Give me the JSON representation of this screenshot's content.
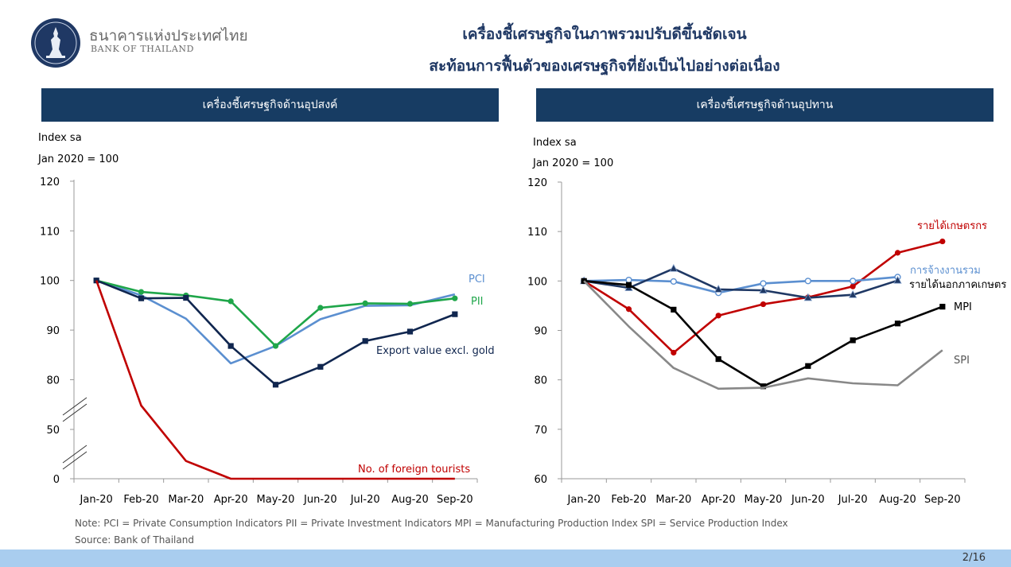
{
  "header": {
    "org_thai": "ธนาคารแห่งประเทศไทย",
    "org_en": "BANK OF THAILAND",
    "title_line1": "เครื่องชี้เศรษฐกิจในภาพรวมปรับดีขึ้นชัดเจน",
    "title_line2": "สะท้อนการฟื้นตัวของเศรษฐกิจที่ยังเป็นไปอย่างต่อเนื่อง"
  },
  "left_panel": {
    "heading": "เครื่องชี้เศรษฐกิจด้านอุปสงค์",
    "unit1": "Index sa",
    "unit2": "Jan 2020 = 100"
  },
  "right_panel": {
    "heading": "เครื่องชี้เศรษฐกิจด้านอุปทาน",
    "unit1": "Index sa",
    "unit2": "Jan 2020 = 100"
  },
  "chart_data": [
    {
      "type": "line",
      "categories": [
        "Jan-20",
        "Feb-20",
        "Mar-20",
        "Apr-20",
        "May-20",
        "Jun-20",
        "Jul-20",
        "Aug-20",
        "Sep-20"
      ],
      "yticks": [
        0,
        50,
        80,
        90,
        100,
        110,
        120
      ],
      "axis_break": true,
      "series": [
        {
          "name": "PCI",
          "color": "#5b8fd0",
          "marker": "none",
          "values": [
            100,
            97,
            92.3,
            83.3,
            86.8,
            92.2,
            94.9,
            95,
            97.2
          ]
        },
        {
          "name": "PII",
          "color": "#1fa64a",
          "marker": "circle",
          "values": [
            100,
            97.7,
            97,
            95.8,
            86.8,
            94.5,
            95.4,
            95.3,
            96.4
          ]
        },
        {
          "name": "Export value excl. gold",
          "color": "#10264f",
          "marker": "square",
          "values": [
            100,
            96.4,
            96.5,
            86.8,
            77,
            82.6,
            87.8,
            89.7,
            93.2
          ]
        },
        {
          "name": "No. of foreign tourists",
          "color": "#c00000",
          "marker": "none",
          "values": [
            100,
            64.4,
            18,
            0,
            0,
            0,
            0,
            0,
            0
          ]
        }
      ]
    },
    {
      "type": "line",
      "categories": [
        "Jan-20",
        "Feb-20",
        "Mar-20",
        "Apr-20",
        "May-20",
        "Jun-20",
        "Jul-20",
        "Aug-20",
        "Sep-20"
      ],
      "yticks": [
        60,
        70,
        80,
        90,
        100,
        110,
        120
      ],
      "ylim": [
        60,
        120
      ],
      "series": [
        {
          "name": "รายได้เกษตรกร",
          "color": "#c00000",
          "marker": "circle",
          "values": [
            100,
            94.3,
            85.5,
            93,
            95.3,
            96.7,
            98.9,
            105.7,
            108
          ]
        },
        {
          "name": "การจ้างงานรวม",
          "color": "#5b8fd0",
          "marker": "open-circle",
          "values": [
            100,
            100.2,
            99.9,
            97.6,
            99.5,
            100,
            100,
            100.8,
            null
          ]
        },
        {
          "name": "รายได้นอกภาคเกษตร",
          "color": "#1f3864",
          "marker": "triangle",
          "values": [
            100,
            98.6,
            102.5,
            98.3,
            98.1,
            96.6,
            97.2,
            100.1,
            null
          ]
        },
        {
          "name": "MPI",
          "color": "#000000",
          "marker": "square",
          "values": [
            100,
            99.2,
            94.2,
            84.2,
            78.7,
            82.8,
            88,
            91.4,
            94.8
          ]
        },
        {
          "name": "SPI",
          "color": "#888888",
          "marker": "none",
          "values": [
            100,
            90.8,
            82.4,
            78.2,
            78.4,
            80.3,
            79.3,
            78.9,
            86
          ]
        }
      ]
    }
  ],
  "notes": {
    "line1": "Note: PCI = Private Consumption Indicators    PII = Private Investment Indicators    MPI = Manufacturing Production Index    SPI = Service Production Index",
    "line2": "Source: Bank of Thailand"
  },
  "footer": {
    "page": "2/16"
  }
}
